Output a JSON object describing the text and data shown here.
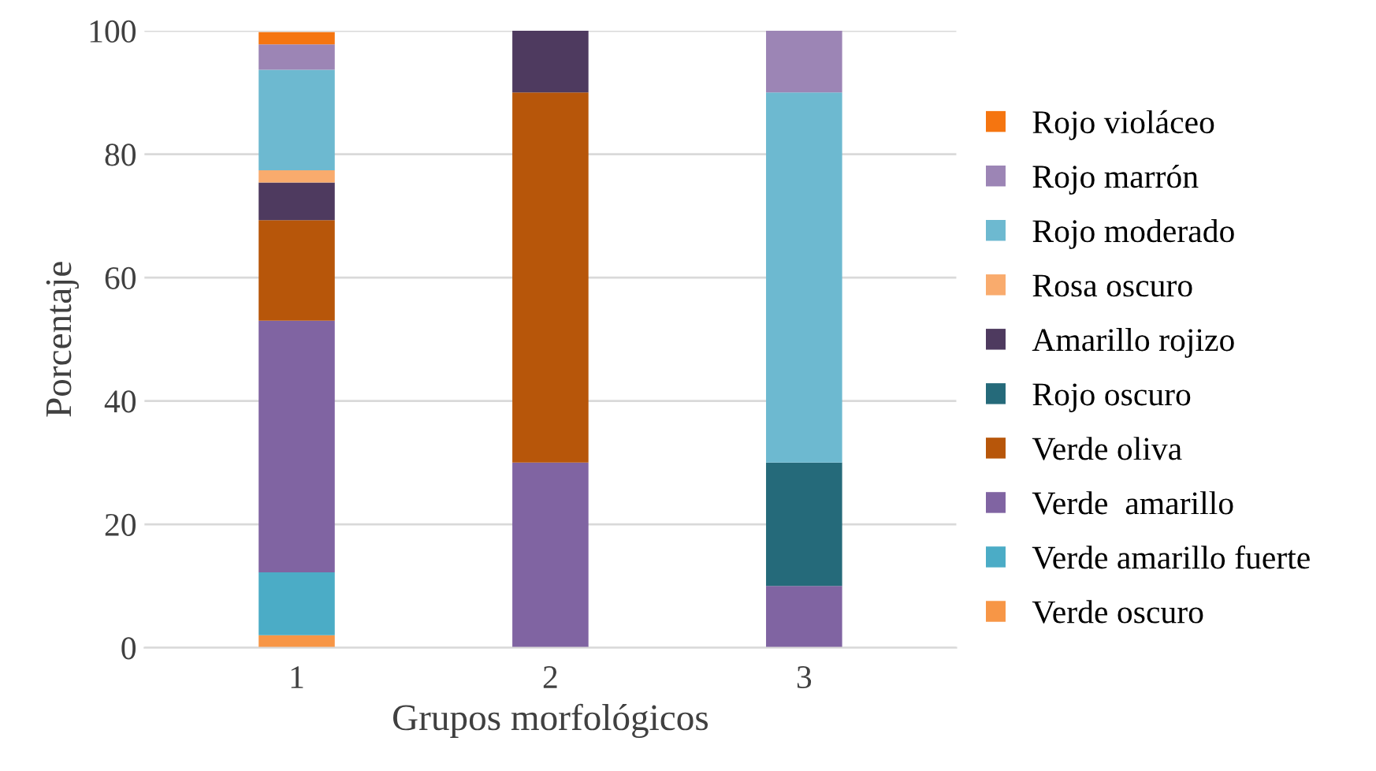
{
  "chart_data": {
    "type": "bar",
    "stacked": true,
    "xlabel": "Grupos morfológicos",
    "ylabel": "Porcentaje",
    "categories": [
      "1",
      "2",
      "3"
    ],
    "series": [
      {
        "name": "Verde oscuro",
        "color": "#f79646",
        "values": [
          2.0,
          0,
          0
        ]
      },
      {
        "name": "Verde amarillo fuerte",
        "color": "#4bacc6",
        "values": [
          10.2,
          0,
          0
        ]
      },
      {
        "name": "Verde  amarillo",
        "color": "#8064a2",
        "values": [
          40.8,
          30,
          10
        ]
      },
      {
        "name": "Verde oliva",
        "color": "#b7560a",
        "values": [
          16.3,
          60,
          0
        ]
      },
      {
        "name": "Rojo oscuro",
        "color": "#256a7a",
        "values": [
          0,
          0,
          20
        ]
      },
      {
        "name": "Amarillo rojizo",
        "color": "#4e3a5f",
        "values": [
          6.1,
          10,
          0
        ]
      },
      {
        "name": "Rosa oscuro",
        "color": "#f9ab6d",
        "values": [
          2.0,
          0,
          0
        ]
      },
      {
        "name": "Rojo moderado",
        "color": "#6db9d0",
        "values": [
          16.3,
          0,
          60
        ]
      },
      {
        "name": "Rojo marrón",
        "color": "#9c85b5",
        "values": [
          4.1,
          0,
          10
        ]
      },
      {
        "name": "Rojo violáceo",
        "color": "#f57510",
        "values": [
          2.0,
          0,
          0
        ]
      }
    ],
    "ylim": [
      0,
      100
    ],
    "yticks": [
      0,
      20,
      40,
      60,
      80,
      100
    ],
    "grid": "y",
    "legend": "right"
  }
}
